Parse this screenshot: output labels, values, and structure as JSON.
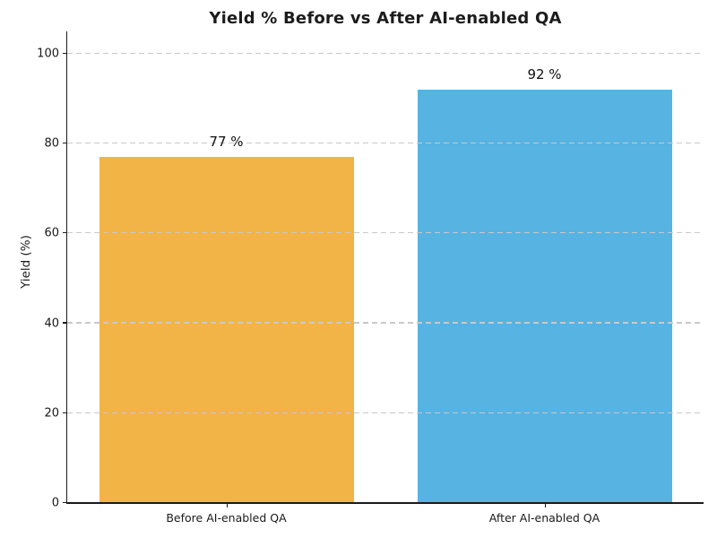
{
  "chart_data": {
    "type": "bar",
    "title": "Yield % Before vs After AI-enabled QA",
    "xlabel": "",
    "ylabel": "Yield (%)",
    "categories": [
      "Before AI-enabled QA",
      "After AI-enabled QA"
    ],
    "values": [
      77,
      92
    ],
    "value_labels": [
      "77 %",
      "92 %"
    ],
    "bar_colors": [
      "#F2B446",
      "#57B3E2"
    ],
    "yticks": [
      0,
      20,
      40,
      60,
      80,
      100
    ],
    "ylim": [
      0,
      105
    ],
    "grid": "horizontal-dashed",
    "grid_color": "#c9c9c9",
    "legend": "none",
    "background_color": "#ffffff",
    "bar_width_fraction": 0.8
  }
}
